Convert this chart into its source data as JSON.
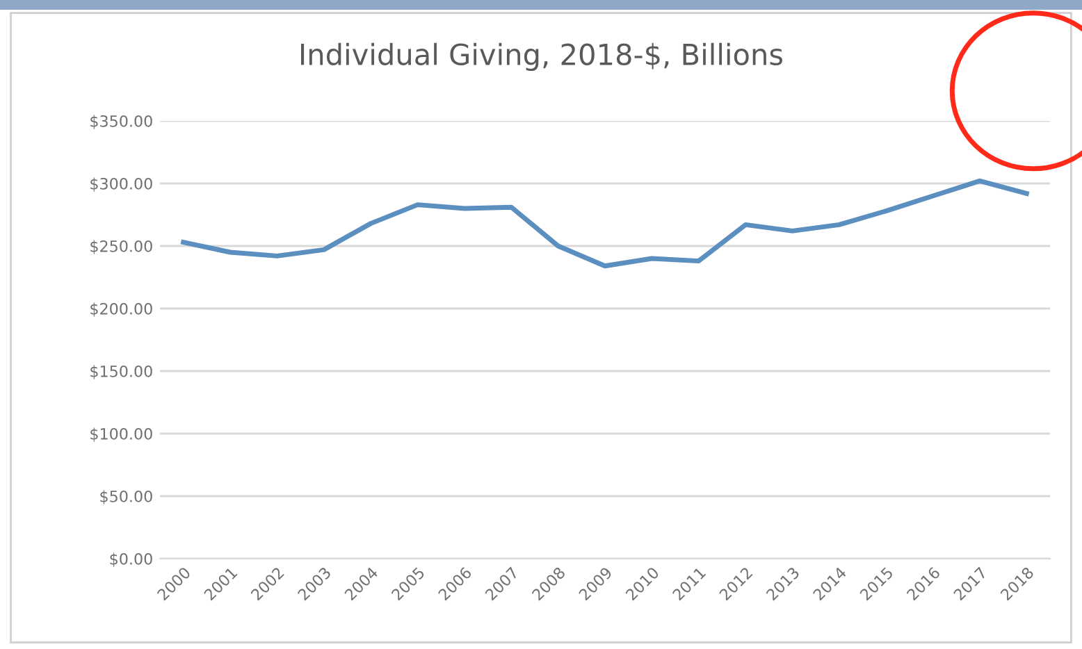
{
  "chart_data": {
    "type": "line",
    "title": "Individual Giving, 2018-$, Billions",
    "categories": [
      "2000",
      "2001",
      "2002",
      "2003",
      "2004",
      "2005",
      "2006",
      "2007",
      "2008",
      "2009",
      "2010",
      "2011",
      "2012",
      "2013",
      "2014",
      "2015",
      "2016",
      "2017",
      "2018"
    ],
    "series": [
      {
        "color": "#5b8fc0",
        "values": [
          253,
          245,
          242,
          247,
          268,
          283,
          280,
          281,
          250,
          234,
          240,
          238,
          267,
          262,
          267,
          278,
          290,
          302,
          292
        ]
      }
    ],
    "ylim": [
      0,
      350
    ],
    "yticks": [
      {
        "value": 0,
        "label": "$0.00"
      },
      {
        "value": 50,
        "label": "$50.00"
      },
      {
        "value": 100,
        "label": "$100.00"
      },
      {
        "value": 150,
        "label": "$150.00"
      },
      {
        "value": 200,
        "label": "$200.00"
      },
      {
        "value": 250,
        "label": "$250.00"
      },
      {
        "value": 300,
        "label": "$300.00"
      },
      {
        "value": 350,
        "label": "$350.00"
      }
    ],
    "grid": "y",
    "legend": false,
    "marker": "none",
    "line_style": "solid"
  }
}
